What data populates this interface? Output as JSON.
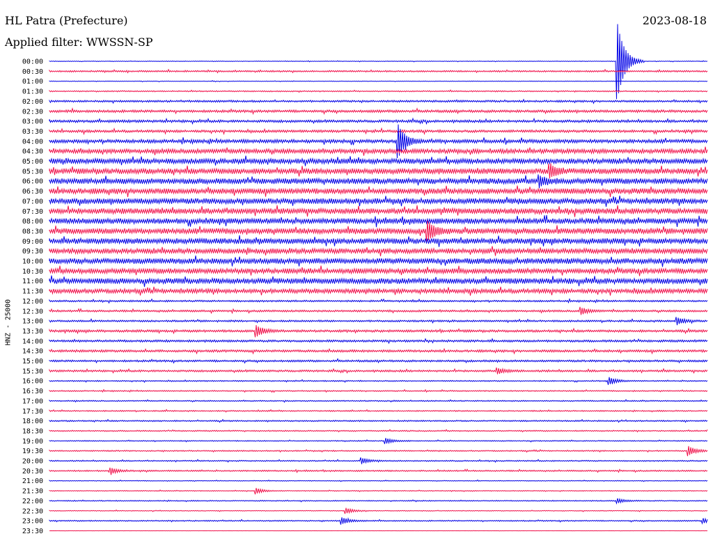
{
  "header": {
    "station": "HL Patra (Prefecture)",
    "filter": "Applied filter: WWSSN-SP",
    "date": "2023-08-18"
  },
  "colors": {
    "trace_a": "#0000e6",
    "trace_b": "#f0104a",
    "axis": "#000000"
  },
  "chart_data": {
    "type": "line",
    "title": "HL Patra (Prefecture)",
    "subtitle": "Applied filter: WWSSN-SP",
    "date": "2023-08-18",
    "ylabel": "HNZ - 25000",
    "xlabel": "",
    "grid": false,
    "legend": "none",
    "row_labels": [
      "00:00",
      "00:30",
      "01:00",
      "01:30",
      "02:00",
      "02:30",
      "03:00",
      "03:30",
      "04:00",
      "04:30",
      "05:00",
      "05:30",
      "06:00",
      "06:30",
      "07:00",
      "07:30",
      "08:00",
      "08:30",
      "09:00",
      "09:30",
      "10:00",
      "10:30",
      "11:00",
      "11:30",
      "12:00",
      "12:30",
      "13:00",
      "13:30",
      "14:00",
      "14:30",
      "15:00",
      "15:30",
      "16:00",
      "16:30",
      "17:00",
      "17:30",
      "18:00",
      "18:30",
      "19:00",
      "19:30",
      "20:00",
      "20:30",
      "21:00",
      "21:30",
      "22:00",
      "22:30",
      "23:00",
      "23:30"
    ],
    "noise_level": [
      0.3,
      0.8,
      0.3,
      0.6,
      1.0,
      1.3,
      1.3,
      1.3,
      1.8,
      2.2,
      2.6,
      2.8,
      2.8,
      2.8,
      2.8,
      2.8,
      2.8,
      2.8,
      2.8,
      2.6,
      2.8,
      2.6,
      2.8,
      2.2,
      0.9,
      1.0,
      0.9,
      1.2,
      1.1,
      1.2,
      1.0,
      1.0,
      0.6,
      0.6,
      0.6,
      0.6,
      0.7,
      0.6,
      0.5,
      0.6,
      0.6,
      0.7,
      0.4,
      0.4,
      0.5,
      0.4,
      0.6,
      0.1
    ],
    "events": [
      {
        "row": 0,
        "minute": 25.9,
        "amplitude": 54
      },
      {
        "row": 8,
        "minute": 15.9,
        "amplitude": 22
      },
      {
        "row": 11,
        "minute": 22.8,
        "amplitude": 9
      },
      {
        "row": 12,
        "minute": 22.3,
        "amplitude": 7
      },
      {
        "row": 17,
        "minute": 17.2,
        "amplitude": 14
      },
      {
        "row": 25,
        "minute": 24.2,
        "amplitude": 5
      },
      {
        "row": 26,
        "minute": 28.6,
        "amplitude": 5
      },
      {
        "row": 27,
        "minute": 9.4,
        "amplitude": 8
      },
      {
        "row": 31,
        "minute": 20.4,
        "amplitude": 4
      },
      {
        "row": 32,
        "minute": 25.5,
        "amplitude": 5
      },
      {
        "row": 38,
        "minute": 15.3,
        "amplitude": 4
      },
      {
        "row": 39,
        "minute": 29.1,
        "amplitude": 7
      },
      {
        "row": 40,
        "minute": 14.2,
        "amplitude": 4
      },
      {
        "row": 41,
        "minute": 2.8,
        "amplitude": 4
      },
      {
        "row": 43,
        "minute": 9.4,
        "amplitude": 4
      },
      {
        "row": 44,
        "minute": 25.9,
        "amplitude": 3
      },
      {
        "row": 45,
        "minute": 13.5,
        "amplitude": 4
      },
      {
        "row": 46,
        "minute": 13.3,
        "amplitude": 5
      },
      {
        "row": 46,
        "minute": 29.8,
        "amplitude": 3
      }
    ]
  }
}
